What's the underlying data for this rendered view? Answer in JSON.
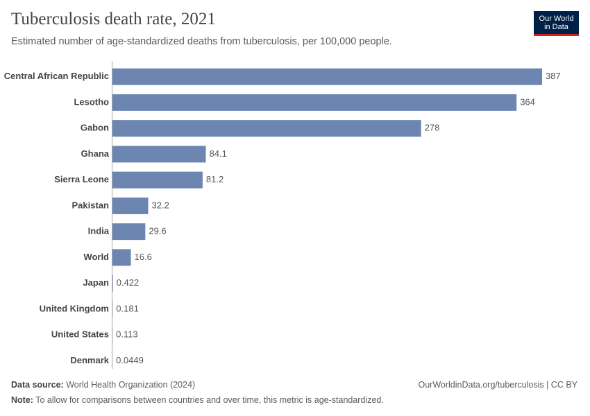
{
  "chart_data": {
    "type": "bar",
    "orientation": "horizontal",
    "title": "Tuberculosis death rate, 2021",
    "subtitle": "Estimated number of age-standardized deaths from tuberculosis, per 100,000 people.",
    "categories": [
      "Central African Republic",
      "Lesotho",
      "Gabon",
      "Ghana",
      "Sierra Leone",
      "Pakistan",
      "India",
      "World",
      "Japan",
      "United Kingdom",
      "United States",
      "Denmark"
    ],
    "values": [
      387,
      364,
      278,
      84.1,
      81.2,
      32.2,
      29.6,
      16.6,
      0.422,
      0.181,
      0.113,
      0.0449
    ],
    "color": "#6d86b1"
  },
  "logo": {
    "line1": "Our World",
    "line2": "in Data"
  },
  "footer": {
    "source_label": "Data source:",
    "source": "World Health Organization (2024)",
    "url": "OurWorldinData.org/tuberculosis | CC BY",
    "note_label": "Note:",
    "note": "To allow for comparisons between countries and over time, this metric is age-standardized."
  }
}
